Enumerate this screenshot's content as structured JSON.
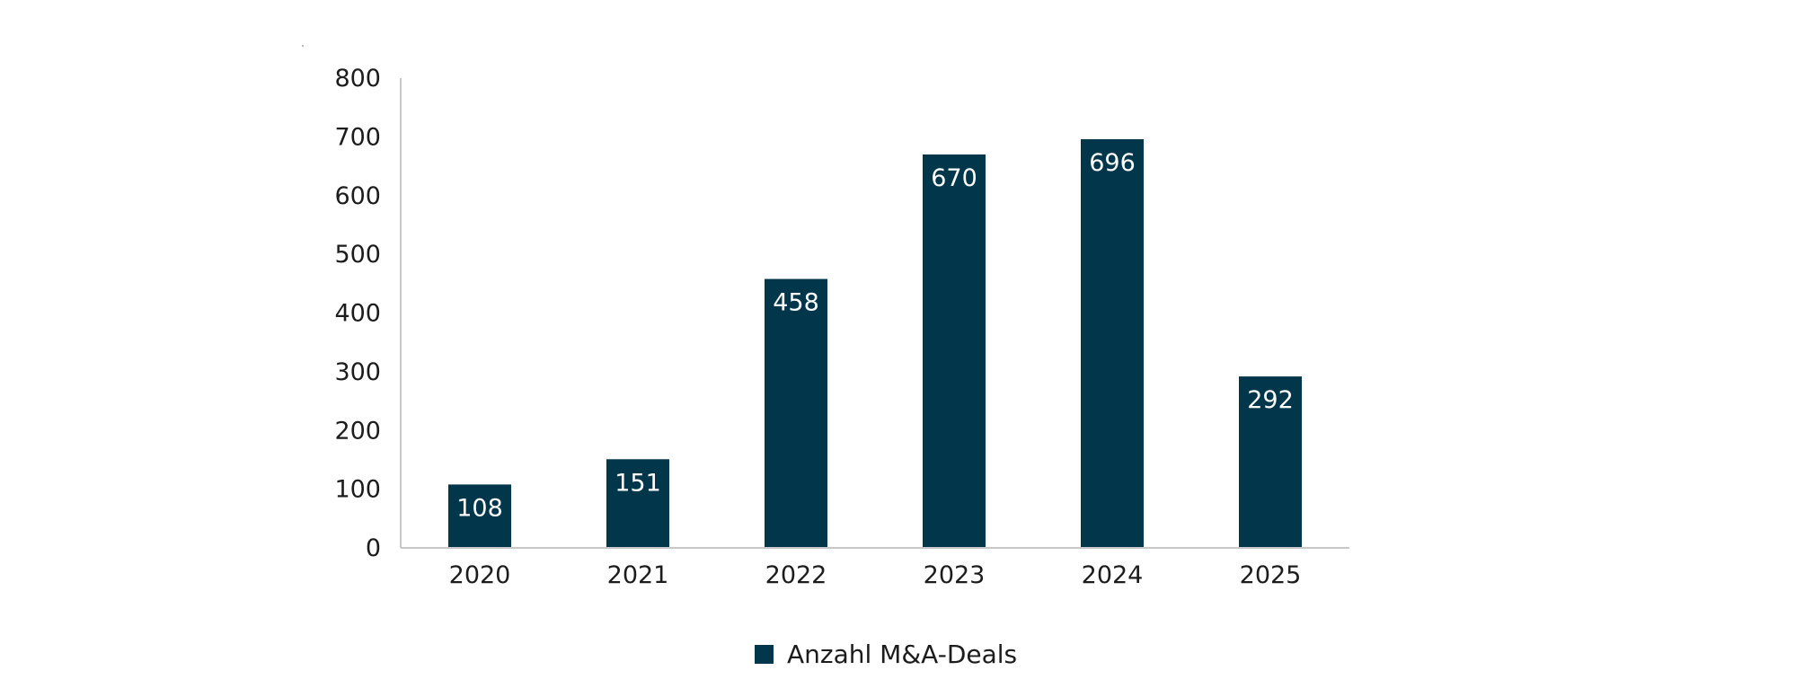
{
  "chart_data": {
    "type": "bar",
    "title": "",
    "xlabel": "",
    "ylabel": "",
    "categories": [
      "2020",
      "2021",
      "2022",
      "2023",
      "2024",
      "2025"
    ],
    "series": [
      {
        "name": "Anzahl M&A-Deals",
        "values": [
          108,
          151,
          458,
          670,
          696,
          292
        ],
        "color": "#01364b"
      }
    ],
    "data_labels": [
      "108",
      "151",
      "458",
      "670",
      "696",
      "292"
    ],
    "ylim": [
      0,
      800
    ],
    "yticks": [
      0,
      100,
      200,
      300,
      400,
      500,
      600,
      700,
      800
    ],
    "ytick_labels": [
      "0",
      "100",
      "200",
      "300",
      "400",
      "500",
      "600",
      "700",
      "800"
    ],
    "grid": false,
    "legend": {
      "position": "bottom-center",
      "label": "Anzahl M&A-Deals"
    },
    "axis_color": "#c8c8c8"
  }
}
